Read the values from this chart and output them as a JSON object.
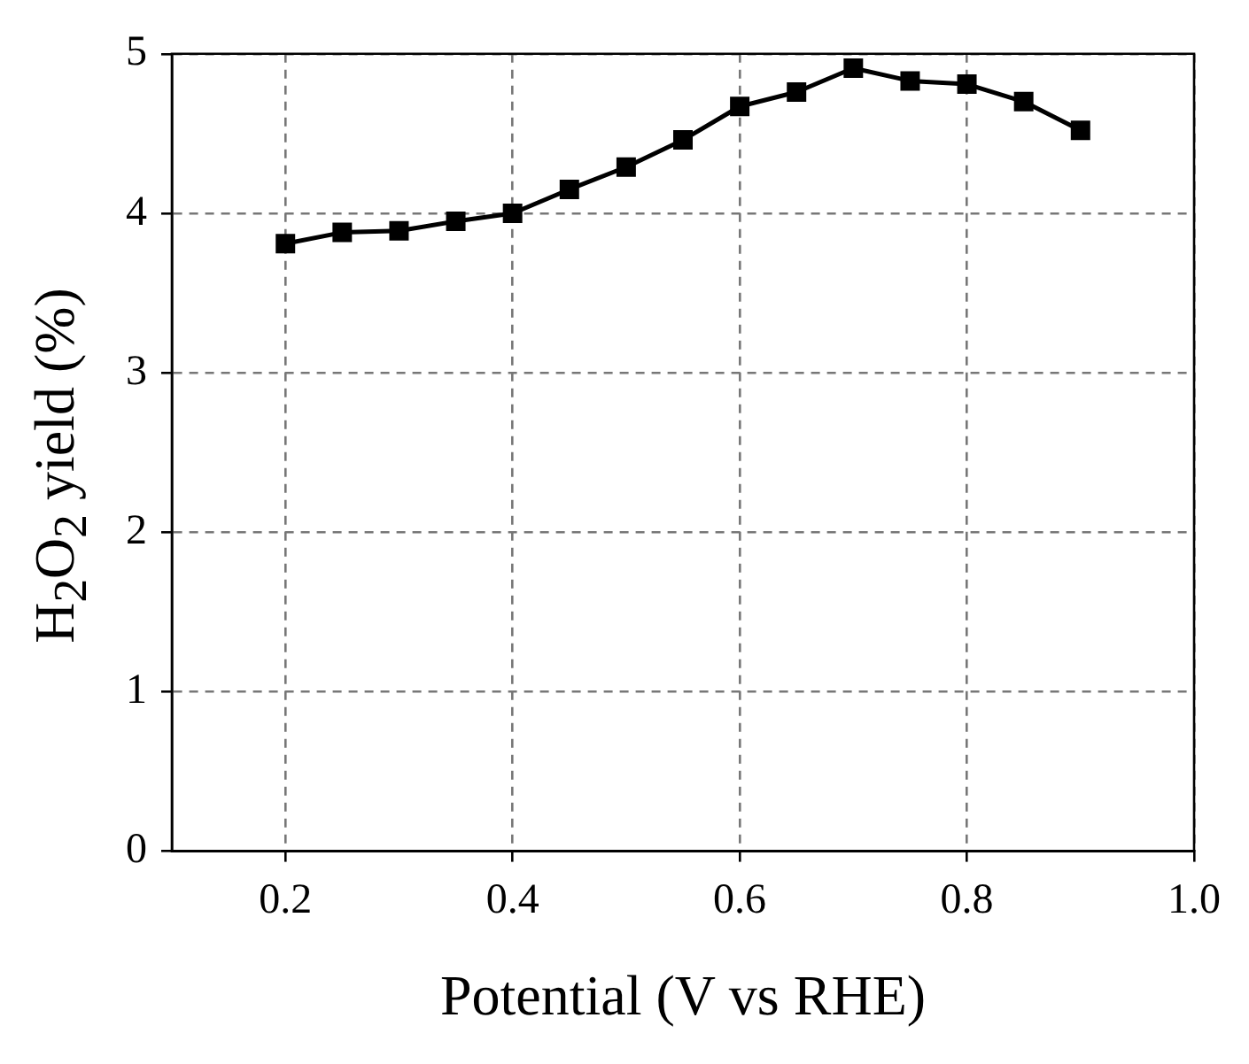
{
  "chart_data": {
    "type": "line",
    "xlabel": "Potential (V vs RHE)",
    "ylabel": "H$_{2}$O$_{2}$ yield (%)",
    "x": [
      0.2,
      0.25,
      0.3,
      0.35,
      0.4,
      0.45,
      0.5,
      0.55,
      0.6,
      0.65,
      0.7,
      0.75,
      0.8,
      0.85,
      0.9
    ],
    "series": [
      {
        "color": "#000000",
        "values": [
          3.81,
          3.88,
          3.89,
          3.95,
          4.0,
          4.15,
          4.29,
          4.46,
          4.67,
          4.76,
          4.91,
          4.83,
          4.81,
          4.7,
          4.52
        ]
      }
    ],
    "xlim": [
      0.1,
      1.0
    ],
    "xticks": [
      0.2,
      0.4,
      0.6,
      0.8,
      {
        "value": 1.0,
        "label": "1.0"
      }
    ],
    "ylim": [
      0,
      5
    ],
    "yticks": [
      0,
      1,
      2,
      3,
      4,
      5
    ],
    "grid": true,
    "legend": false,
    "marker": "square",
    "line_style": "solid"
  }
}
